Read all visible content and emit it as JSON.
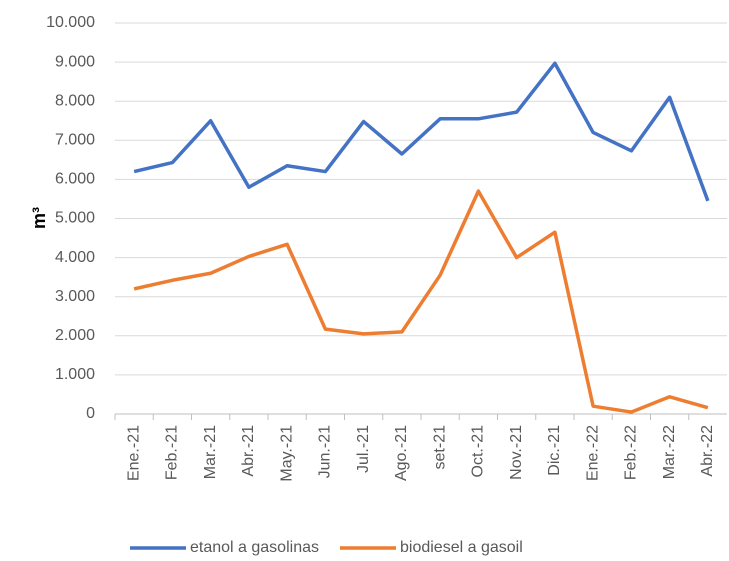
{
  "chart_data": {
    "type": "line",
    "ylabel": "m³",
    "categories": [
      "Ene.-21",
      "Feb.-21",
      "Mar.-21",
      "Abr.-21",
      "May.-21",
      "Jun.-21",
      "Jul.-21",
      "Ago.-21",
      "set-21",
      "Oct.-21",
      "Nov.-21",
      "Dic.-21",
      "Ene.-22",
      "Feb.-22",
      "Mar.-22",
      "Abr.-22"
    ],
    "series": [
      {
        "name": "etanol a gasolinas",
        "color": "#4472c4",
        "values": [
          6200,
          6430,
          7500,
          5800,
          6350,
          6200,
          7480,
          6650,
          7550,
          7550,
          7720,
          8970,
          7200,
          6730,
          8100,
          5450
        ]
      },
      {
        "name": "biodiesel a gasoil",
        "color": "#ed7d31",
        "values": [
          3200,
          3420,
          3600,
          4030,
          4340,
          2170,
          2050,
          2100,
          3550,
          5700,
          4000,
          4650,
          200,
          50,
          440,
          160
        ]
      }
    ],
    "ylim": [
      0,
      10000
    ],
    "yticks": [
      0,
      {
        "value": 1000,
        "label": "1.000"
      },
      {
        "value": 2000,
        "label": "2.000"
      },
      {
        "value": 3000,
        "label": "3.000"
      },
      {
        "value": 4000,
        "label": "4.000"
      },
      {
        "value": 5000,
        "label": "5.000"
      },
      {
        "value": 6000,
        "label": "6.000"
      },
      {
        "value": 7000,
        "label": "7.000"
      },
      {
        "value": 8000,
        "label": "8.000"
      },
      {
        "value": 9000,
        "label": "9.000"
      },
      {
        "value": 10000,
        "label": "10.000"
      }
    ],
    "grid": true,
    "legend": "bottom"
  }
}
